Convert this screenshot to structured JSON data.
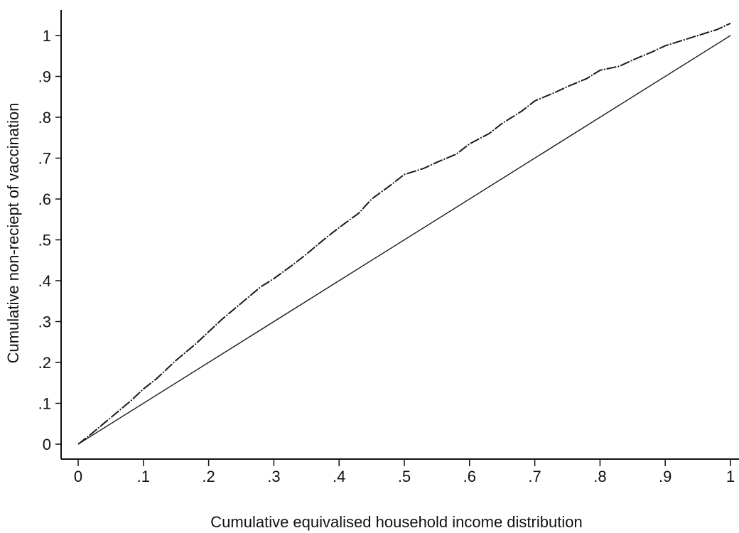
{
  "chart_data": {
    "type": "line",
    "title": "",
    "xlabel": "Cumulative equivalised household income distribution",
    "ylabel": "Cumulative non-reciept of vaccination",
    "xlim": [
      0,
      1
    ],
    "ylim": [
      0,
      1.03
    ],
    "grid": false,
    "legend": "none",
    "x_ticks": [
      0,
      0.1,
      0.2,
      0.3,
      0.4,
      0.5,
      0.6,
      0.7,
      0.8,
      0.9,
      1
    ],
    "x_tick_labels": [
      "0",
      ".1",
      ".2",
      ".3",
      ".4",
      ".5",
      ".6",
      ".7",
      ".8",
      ".9",
      "1"
    ],
    "y_ticks": [
      0,
      0.1,
      0.2,
      0.3,
      0.4,
      0.5,
      0.6,
      0.7,
      0.8,
      0.9,
      1
    ],
    "y_tick_labels": [
      "0",
      ".1",
      ".2",
      ".3",
      ".4",
      ".5",
      ".6",
      ".7",
      ".8",
      ".9",
      "1"
    ],
    "series": [
      {
        "line_style": "dashed",
        "color": "#1a1a1a",
        "x": [
          0,
          0.02,
          0.05,
          0.08,
          0.1,
          0.12,
          0.15,
          0.18,
          0.2,
          0.22,
          0.25,
          0.28,
          0.3,
          0.33,
          0.35,
          0.38,
          0.4,
          0.43,
          0.45,
          0.48,
          0.5,
          0.53,
          0.55,
          0.58,
          0.6,
          0.63,
          0.65,
          0.68,
          0.7,
          0.73,
          0.75,
          0.78,
          0.8,
          0.83,
          0.85,
          0.88,
          0.9,
          0.93,
          0.95,
          0.98,
          1.0
        ],
        "y": [
          0,
          0.025,
          0.065,
          0.105,
          0.135,
          0.16,
          0.205,
          0.245,
          0.275,
          0.305,
          0.345,
          0.385,
          0.405,
          0.44,
          0.465,
          0.505,
          0.53,
          0.565,
          0.6,
          0.635,
          0.66,
          0.675,
          0.69,
          0.71,
          0.735,
          0.76,
          0.785,
          0.815,
          0.84,
          0.86,
          0.875,
          0.895,
          0.915,
          0.925,
          0.94,
          0.96,
          0.975,
          0.99,
          1.0,
          1.015,
          1.03
        ]
      },
      {
        "line_style": "solid",
        "color": "#1a1a1a",
        "x": [
          0,
          1
        ],
        "y": [
          0,
          1
        ]
      }
    ]
  }
}
